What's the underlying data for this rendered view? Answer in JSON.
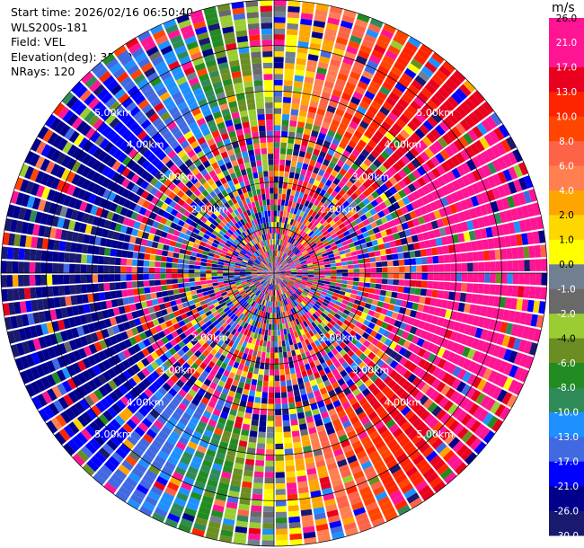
{
  "header": {
    "start_time": "Start time: 2026/02/16 06:50:40",
    "instrument": "WLS200s-181",
    "field": "Field: VEL",
    "elevation": "Elevation(deg): 35.00",
    "nrays": "NRays: 120"
  },
  "chart_data": {
    "type": "ppi",
    "field": "VEL",
    "units": "m/s",
    "nrays": 120,
    "elevation_deg": 35.0,
    "range_rings_km": [
      2.0,
      3.0,
      4.0,
      5.0
    ],
    "range_ring_labels": [
      "2.00km",
      "3.00km",
      "4.00km",
      "5.00km"
    ],
    "max_range_km": 6.0,
    "colorbar": {
      "ticks": [
        26.0,
        21.0,
        17.0,
        13.0,
        10.0,
        8.0,
        6.0,
        4.0,
        2.0,
        1.0,
        0.0,
        -1.0,
        -2.0,
        -4.0,
        -6.0,
        -8.0,
        -10.0,
        -13.0,
        -17.0,
        -21.0,
        -26.0,
        -30.0
      ],
      "tick_labels": [
        "26.0",
        "21.0",
        "17.0",
        "13.0",
        "10.0",
        "8.0",
        "6.0",
        "4.0",
        "2.0",
        "1.0",
        "0.0",
        "-1.0",
        "-2.0",
        "-4.0",
        "-6.0",
        "-8.0",
        "-10.0",
        "-13.0",
        "-17.0",
        "-21.0",
        "-26.0",
        "-30.0"
      ],
      "colors": [
        "#ff1493",
        "#ff1493",
        "#e8001e",
        "#ff2400",
        "#ff4500",
        "#ff6347",
        "#ff7f50",
        "#ffa500",
        "#ffd700",
        "#ffff00",
        "#708090",
        "#696969",
        "#9acd32",
        "#6b8e23",
        "#228b22",
        "#2e8b57",
        "#1e90ff",
        "#4169e1",
        "#0000ff",
        "#00008b",
        "#191970"
      ]
    },
    "wind_pattern": {
      "description_values_ms": {
        "east_side": 21.0,
        "west_side": -26.0,
        "north_south": 0.0
      }
    }
  }
}
